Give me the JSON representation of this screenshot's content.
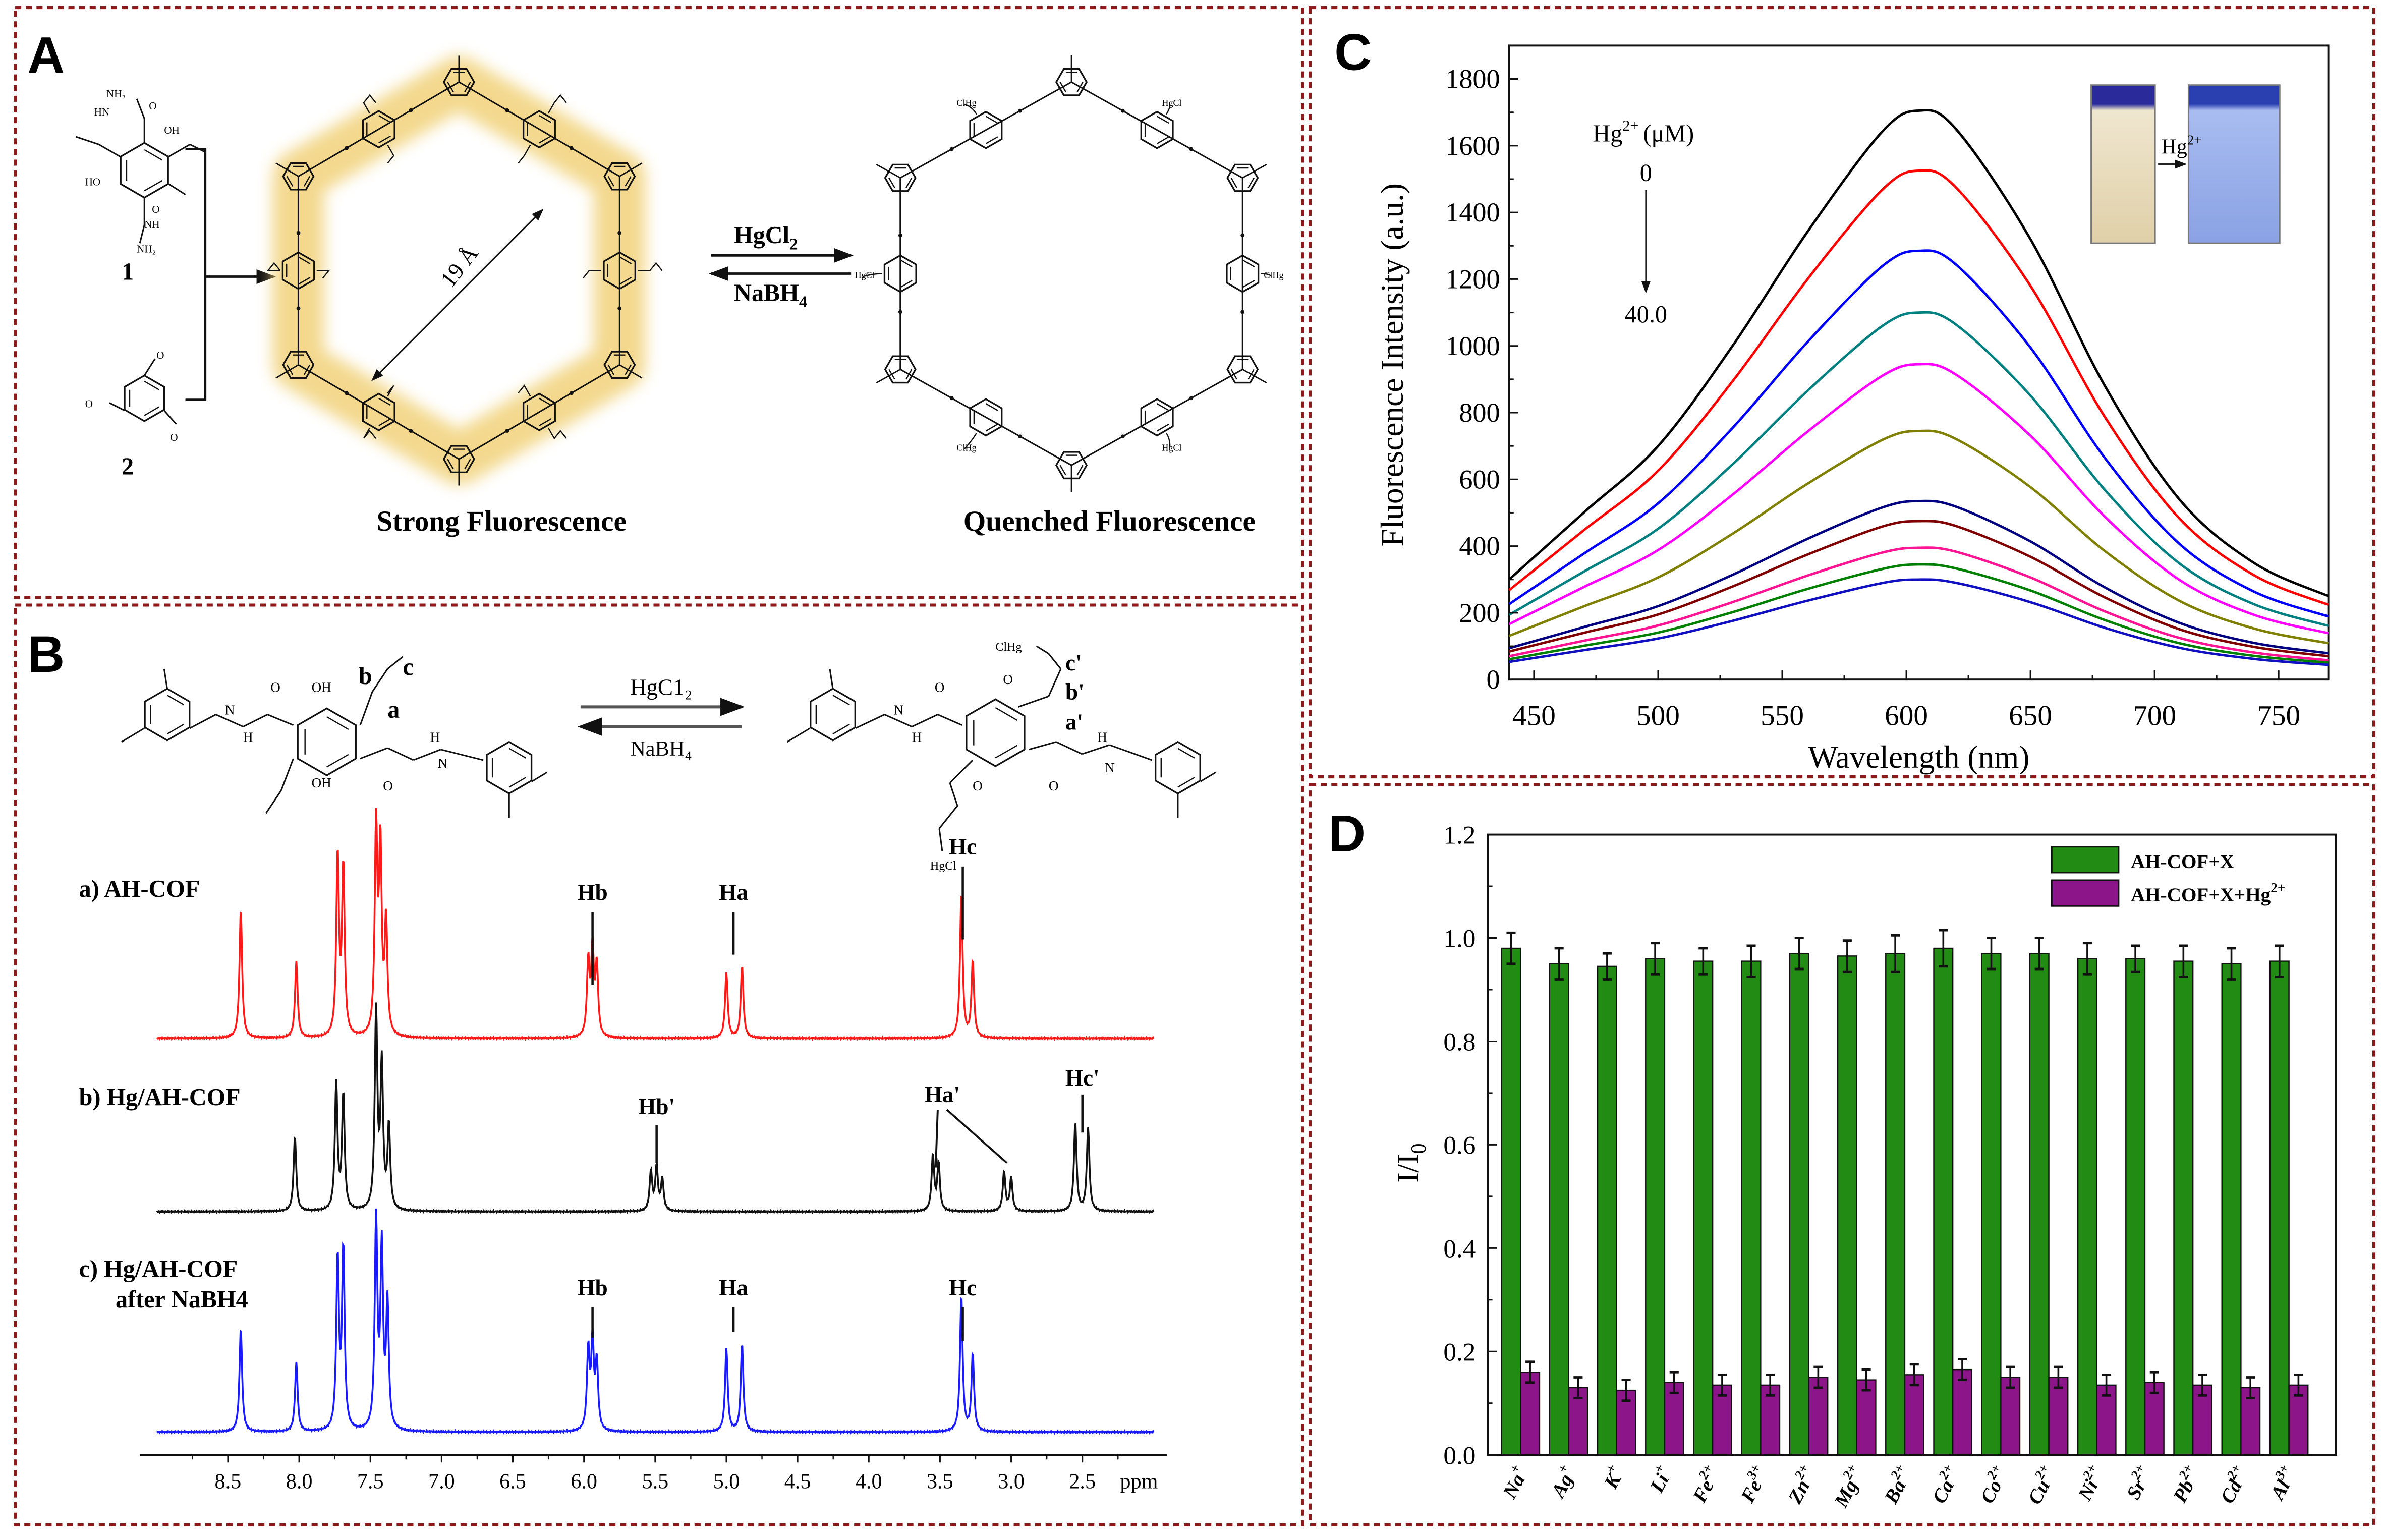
{
  "panel_a": {
    "letter": "A",
    "monomer_1_label": "1",
    "monomer_2_label": "2",
    "monomer_1_atoms": [
      "NH₂",
      "HN",
      "O",
      "OH",
      "HO",
      "O",
      "NH",
      "NH₂"
    ],
    "monomer_2_atoms": [
      "O",
      "O",
      "O"
    ],
    "pore_size": "19 Å",
    "forward_reagent": "HgCl",
    "forward_reagent_sub": "2",
    "reverse_reagent": "NaBH",
    "reverse_reagent_sub": "4",
    "quenched_atoms": [
      "HgCl",
      "ClHg",
      "HgCl",
      "ClHg",
      "HgCl",
      "ClHg"
    ],
    "caption_left": "Strong Fluorescence",
    "caption_right": "Quenched Fluorescence",
    "glow_color": "#f1d27a"
  },
  "panel_b": {
    "letter": "B",
    "left_atoms": [
      "OH",
      "OH",
      "O",
      "O",
      "N",
      "N",
      "H",
      "H"
    ],
    "left_site_labels": [
      "b",
      "c",
      "a"
    ],
    "right_atoms": [
      "O",
      "O",
      "O",
      "O",
      "N",
      "N",
      "H",
      "H",
      "ClHg",
      "HgCl"
    ],
    "right_site_labels": [
      "c'",
      "b'",
      "a'"
    ],
    "forward_reagent": "HgC1₂",
    "reverse_reagent": "NaBH₄",
    "spectra_labels": {
      "a": "a) AH-COF",
      "b": "b) Hg/AH-COF",
      "c_line1": "c) Hg/AH-COF",
      "c_line2": "after NaBH4"
    },
    "peak_labels": {
      "a_hb": "Hb",
      "a_ha": "Ha",
      "a_hc": "Hc",
      "b_hb": "Hb'",
      "b_ha": "Ha'",
      "b_hc": "Hc'",
      "c_hb": "Hb",
      "c_ha": "Ha",
      "c_hc": "Hc"
    }
  },
  "panel_c": {
    "letter": "C",
    "legend_title": "Hg",
    "legend_title_sup": "2+",
    "legend_title_unit": "(μM)",
    "legend_start": "0",
    "legend_end": "40.0",
    "inset_arrow_label": "Hg",
    "inset_arrow_sup": "2+",
    "inset_colors": {
      "before": "#e9dcc0",
      "after": "#8da6e6"
    }
  },
  "panel_d": {
    "letter": "D"
  },
  "chart_data": [
    {
      "id": "nmr",
      "type": "line",
      "xlabel": "ppm",
      "xlim": [
        9.1,
        1.95
      ],
      "x_reversed": true,
      "xticks": [
        "8.5",
        "8.0",
        "7.5",
        "7.0",
        "6.5",
        "6.0",
        "5.5",
        "5.0",
        "4.5",
        "4.0",
        "3.5",
        "3.0",
        "2.5"
      ],
      "series": [
        {
          "name": "a) AH-COF",
          "color": "#ff1a1a",
          "peaks_ppm_relintensity": [
            [
              8.41,
              0.63
            ],
            [
              8.02,
              0.37
            ],
            [
              7.73,
              0.88
            ],
            [
              7.69,
              0.82
            ],
            [
              7.46,
              1.0
            ],
            [
              7.43,
              0.9
            ],
            [
              7.39,
              0.55
            ],
            [
              5.97,
              0.36
            ],
            [
              5.94,
              0.42
            ],
            [
              5.91,
              0.34
            ],
            [
              5.0,
              0.32
            ],
            [
              4.89,
              0.35
            ],
            [
              3.35,
              0.7
            ],
            [
              3.27,
              0.37
            ]
          ]
        },
        {
          "name": "b) Hg/AH-COF",
          "color": "#111111",
          "peaks_ppm_relintensity": [
            [
              8.03,
              0.38
            ],
            [
              7.74,
              0.64
            ],
            [
              7.69,
              0.58
            ],
            [
              7.46,
              1.0
            ],
            [
              7.42,
              0.72
            ],
            [
              7.37,
              0.42
            ],
            [
              5.53,
              0.2
            ],
            [
              5.49,
              0.22
            ],
            [
              5.45,
              0.16
            ],
            [
              3.55,
              0.28
            ],
            [
              3.51,
              0.24
            ],
            [
              3.05,
              0.2
            ],
            [
              3.0,
              0.17
            ],
            [
              2.55,
              0.45
            ],
            [
              2.46,
              0.42
            ]
          ]
        },
        {
          "name": "c) Hg/AH-COF after NaBH4",
          "color": "#1a1aff",
          "peaks_ppm_relintensity": [
            [
              8.41,
              0.5
            ],
            [
              8.02,
              0.33
            ],
            [
              7.73,
              0.82
            ],
            [
              7.69,
              0.86
            ],
            [
              7.46,
              1.0
            ],
            [
              7.42,
              0.85
            ],
            [
              7.38,
              0.6
            ],
            [
              5.97,
              0.38
            ],
            [
              5.94,
              0.42
            ],
            [
              5.91,
              0.32
            ],
            [
              5.0,
              0.4
            ],
            [
              4.89,
              0.42
            ],
            [
              3.35,
              0.65
            ],
            [
              3.27,
              0.37
            ]
          ]
        }
      ]
    },
    {
      "id": "fluorescence",
      "type": "line",
      "xlabel": "Wavelength (nm)",
      "ylabel": "Fluorescence Intensity (a.u.)",
      "xlim": [
        440,
        770
      ],
      "ylim": [
        0,
        1900
      ],
      "xticks": [
        450,
        500,
        550,
        600,
        650,
        700,
        750
      ],
      "yticks": [
        0,
        200,
        400,
        600,
        800,
        1000,
        1200,
        1400,
        1600,
        1800
      ],
      "grid": false,
      "x": [
        440,
        470,
        500,
        530,
        560,
        590,
        605,
        620,
        650,
        680,
        710,
        740,
        770
      ],
      "series": [
        {
          "color": "#000000",
          "values": [
            300,
            500,
            700,
            1000,
            1340,
            1640,
            1705,
            1650,
            1320,
            880,
            540,
            350,
            250
          ]
        },
        {
          "color": "#ff0000",
          "values": [
            268,
            447,
            626,
            894,
            1198,
            1466,
            1525,
            1475,
            1180,
            787,
            483,
            313,
            224
          ]
        },
        {
          "color": "#0000ff",
          "values": [
            226,
            377,
            528,
            754,
            1010,
            1237,
            1285,
            1244,
            995,
            664,
            407,
            264,
            189
          ]
        },
        {
          "color": "#008080",
          "values": [
            194,
            323,
            452,
            645,
            864,
            1058,
            1100,
            1064,
            851,
            568,
            348,
            226,
            161
          ]
        },
        {
          "color": "#ff00ff",
          "values": [
            166,
            277,
            388,
            554,
            742,
            909,
            945,
            914,
            731,
            488,
            299,
            194,
            139
          ]
        },
        {
          "color": "#808000",
          "values": [
            131,
            219,
            306,
            437,
            586,
            717,
            745,
            721,
            577,
            385,
            236,
            153,
            109
          ]
        },
        {
          "color": "#000080",
          "values": [
            94,
            157,
            220,
            314,
            421,
            515,
            535,
            518,
            414,
            276,
            170,
            110,
            79
          ]
        },
        {
          "color": "#800000",
          "values": [
            84,
            140,
            195,
            279,
            374,
            458,
            475,
            460,
            368,
            246,
            151,
            98,
            70
          ]
        },
        {
          "color": "#ff1493",
          "values": [
            70,
            116,
            162,
            232,
            311,
            380,
            395,
            383,
            306,
            204,
            125,
            81,
            58
          ]
        },
        {
          "color": "#008000",
          "values": [
            61,
            101,
            141,
            202,
            271,
            331,
            345,
            333,
            267,
            178,
            109,
            71,
            51
          ]
        },
        {
          "color": "#1010c0",
          "values": [
            53,
            88,
            123,
            176,
            236,
            289,
            300,
            290,
            232,
            155,
            95,
            62,
            44
          ]
        }
      ]
    },
    {
      "id": "selectivity",
      "type": "bar",
      "ylabel": "I/I",
      "ylabel_sub": "0",
      "ylim": [
        0,
        1.2
      ],
      "yticks": [
        "0.0",
        "0.2",
        "0.4",
        "0.6",
        "0.8",
        "1.0",
        "1.2"
      ],
      "legend_position": "top-right",
      "categories": [
        {
          "ion": "Na",
          "charge": "+"
        },
        {
          "ion": "Ag",
          "charge": "+"
        },
        {
          "ion": "K",
          "charge": "+"
        },
        {
          "ion": "Li",
          "charge": "+"
        },
        {
          "ion": "Fe",
          "charge": "2+"
        },
        {
          "ion": "Fe",
          "charge": "3+"
        },
        {
          "ion": "Zn",
          "charge": "2+"
        },
        {
          "ion": "Mg",
          "charge": "2+"
        },
        {
          "ion": "Ba",
          "charge": "2+"
        },
        {
          "ion": "Ca",
          "charge": "2+"
        },
        {
          "ion": "Co",
          "charge": "2+"
        },
        {
          "ion": "Cu",
          "charge": "2+"
        },
        {
          "ion": "Ni",
          "charge": "2+"
        },
        {
          "ion": "Sr",
          "charge": "2+"
        },
        {
          "ion": "Pb",
          "charge": "2+"
        },
        {
          "ion": "Cd",
          "charge": "2+"
        },
        {
          "ion": "Al",
          "charge": "3+"
        }
      ],
      "series": [
        {
          "name": "AH-COF+X",
          "name_sup": "",
          "color": "#228b14",
          "values": [
            0.98,
            0.95,
            0.945,
            0.96,
            0.955,
            0.955,
            0.97,
            0.965,
            0.97,
            0.98,
            0.97,
            0.97,
            0.96,
            0.96,
            0.955,
            0.95,
            0.955
          ],
          "errors": [
            0.03,
            0.03,
            0.025,
            0.03,
            0.025,
            0.03,
            0.03,
            0.03,
            0.035,
            0.035,
            0.03,
            0.03,
            0.03,
            0.025,
            0.03,
            0.03,
            0.03
          ]
        },
        {
          "name": "AH-COF+X+Hg",
          "name_sup": "2+",
          "color": "#8b1589",
          "values": [
            0.16,
            0.13,
            0.125,
            0.14,
            0.135,
            0.135,
            0.15,
            0.145,
            0.155,
            0.165,
            0.15,
            0.15,
            0.135,
            0.14,
            0.135,
            0.13,
            0.135
          ],
          "errors": [
            0.02,
            0.02,
            0.02,
            0.02,
            0.02,
            0.02,
            0.02,
            0.02,
            0.02,
            0.02,
            0.02,
            0.02,
            0.02,
            0.02,
            0.02,
            0.02,
            0.02
          ]
        }
      ]
    }
  ]
}
